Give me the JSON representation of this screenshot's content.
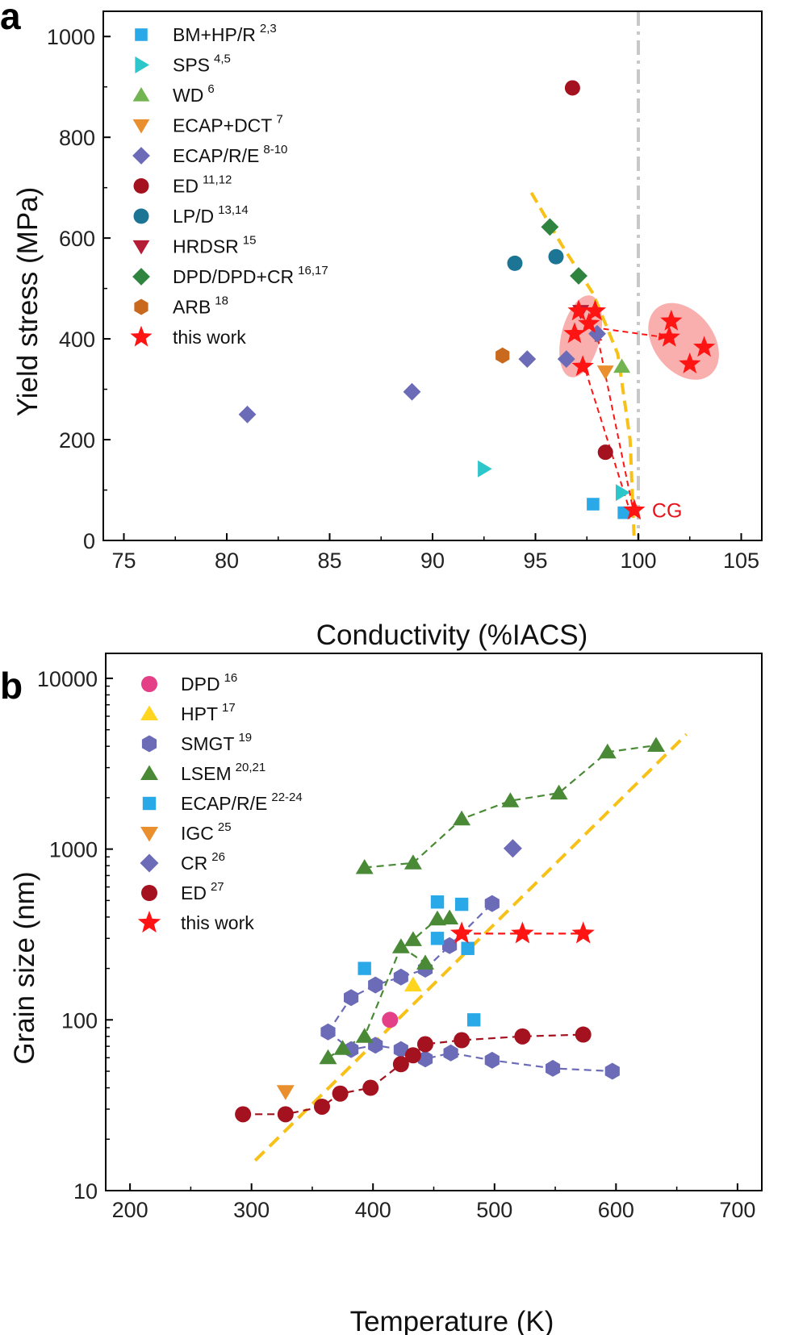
{
  "chart_data": [
    {
      "panel_label": "a",
      "type": "scatter",
      "xlabel": "Conductivity (%IACS)",
      "ylabel": "Yield stress (MPa)",
      "xlim": [
        74,
        106
      ],
      "ylim": [
        0,
        1050
      ],
      "xticks": [
        "75",
        "80",
        "85",
        "90",
        "95",
        "100",
        "105"
      ],
      "yticks": [
        "0",
        "200",
        "400",
        "600",
        "800",
        "1000"
      ],
      "grid": false,
      "legend_position": "top-left",
      "series": [
        {
          "name": "BM+HP/R",
          "ref": "2,3",
          "marker": "square",
          "color": "#29a9e8",
          "points": [
            [
              97.8,
              72
            ],
            [
              99.3,
              55
            ]
          ]
        },
        {
          "name": "SPS",
          "ref": "4,5",
          "marker": "triangle-right",
          "color": "#2cc6cb",
          "points": [
            [
              92.5,
              142
            ],
            [
              99.2,
              95
            ]
          ]
        },
        {
          "name": "WD",
          "ref": "6",
          "marker": "triangle-up",
          "color": "#72b44f",
          "points": [
            [
              99.2,
              345
            ]
          ]
        },
        {
          "name": "ECAP+DCT",
          "ref": "7",
          "marker": "triangle-down",
          "color": "#e98f2e",
          "points": [
            [
              98.4,
              335
            ]
          ]
        },
        {
          "name": "ECAP/R/E",
          "ref": "8-10",
          "marker": "diamond",
          "color": "#6c6bb8",
          "points": [
            [
              81.0,
              250
            ],
            [
              89.0,
              295
            ],
            [
              94.6,
              360
            ],
            [
              96.5,
              360
            ],
            [
              98.0,
              410
            ]
          ]
        },
        {
          "name": "ED",
          "ref": "11,12",
          "marker": "circle",
          "color": "#a3121e",
          "points": [
            [
              96.8,
              898
            ],
            [
              98.4,
              175
            ]
          ]
        },
        {
          "name": "LP/D",
          "ref": "13,14",
          "marker": "circle",
          "color": "#1c7594",
          "points": [
            [
              94.0,
              550
            ],
            [
              96.0,
              563
            ]
          ]
        },
        {
          "name": "HRDSR",
          "ref": "15",
          "marker": "triangle-down",
          "color": "#b51c35",
          "points": [
            [
              97.2,
              455
            ]
          ]
        },
        {
          "name": "DPD/DPD+CR",
          "ref": "16,17",
          "marker": "diamond",
          "color": "#2f8440",
          "points": [
            [
              95.7,
              622
            ],
            [
              97.1,
              525
            ]
          ]
        },
        {
          "name": "ARB",
          "ref": "18",
          "marker": "hexagon",
          "color": "#c9691d",
          "points": [
            [
              93.4,
              367
            ]
          ]
        },
        {
          "name": "this work",
          "ref": "",
          "marker": "star",
          "color": "#ff1414",
          "points": [
            [
              97.1,
              455
            ],
            [
              97.9,
              455
            ],
            [
              97.6,
              430
            ],
            [
              96.9,
              410
            ],
            [
              97.3,
              345
            ],
            [
              99.8,
              60
            ],
            [
              101.6,
              435
            ],
            [
              101.5,
              403
            ],
            [
              103.2,
              383
            ],
            [
              102.5,
              350
            ]
          ]
        }
      ],
      "annotations": {
        "cg_label": "CG",
        "dashed_curve": [
          [
            94.8,
            690
          ],
          [
            96.3,
            585
          ],
          [
            97.8,
            490
          ],
          [
            99.0,
            370
          ],
          [
            99.6,
            200
          ],
          [
            99.8,
            0
          ]
        ],
        "vertical_line_x": 100
      }
    },
    {
      "panel_label": "b",
      "type": "scatter",
      "xlabel": "Temperature (K)",
      "ylabel": "Grain size (nm)",
      "xlim": [
        180,
        720
      ],
      "ylim": [
        10,
        14000
      ],
      "y_scale": "log",
      "xticks": [
        "200",
        "300",
        "400",
        "500",
        "600",
        "700"
      ],
      "yticks": [
        "10",
        "100",
        "1000",
        "10000"
      ],
      "grid": false,
      "legend_position": "top-left",
      "series": [
        {
          "name": "DPD",
          "ref": "16",
          "marker": "circle",
          "color": "#e44088",
          "connected": false,
          "points": [
            [
              414,
              100
            ]
          ]
        },
        {
          "name": "HPT",
          "ref": "17",
          "marker": "triangle-up",
          "color": "#ffd51f",
          "connected": false,
          "points": [
            [
              433,
              160
            ]
          ]
        },
        {
          "name": "SMGT",
          "ref": "19",
          "marker": "hexagon",
          "color": "#6c6bb8",
          "connected": true,
          "lines": [
            [
              [
                363,
                85
              ],
              [
                382,
                135
              ],
              [
                402,
                160
              ],
              [
                423,
                178
              ],
              [
                443,
                198
              ],
              [
                463,
                272
              ],
              [
                498,
                480
              ]
            ],
            [
              [
                363,
                85
              ],
              [
                382,
                67
              ],
              [
                402,
                71
              ],
              [
                423,
                67
              ],
              [
                443,
                59
              ],
              [
                464,
                64
              ],
              [
                498,
                58
              ],
              [
                548,
                52
              ],
              [
                597,
                50
              ]
            ]
          ]
        },
        {
          "name": "LSEM",
          "ref": "20,21",
          "marker": "triangle-up",
          "color": "#4a8a36",
          "connected": true,
          "lines": [
            [
              [
                363,
                60
              ],
              [
                375,
                68
              ],
              [
                393,
                80
              ],
              [
                423,
                268
              ],
              [
                433,
                295
              ],
              [
                453,
                390
              ],
              [
                463,
                395
              ]
            ],
            [
              [
                393,
                780
              ],
              [
                433,
                830
              ],
              [
                473,
                1500
              ],
              [
                513,
                1920
              ],
              [
                553,
                2130
              ],
              [
                593,
                3700
              ],
              [
                633,
                4050
              ]
            ],
            [
              [
                423,
                268
              ],
              [
                443,
                215
              ]
            ]
          ]
        },
        {
          "name": "ECAP/R/E",
          "ref": "22-24",
          "marker": "square",
          "color": "#29a9e8",
          "connected": false,
          "points": [
            [
              393,
              200
            ],
            [
              453,
              490
            ],
            [
              453,
              300
            ],
            [
              473,
              475
            ],
            [
              478,
              262
            ],
            [
              483,
              100
            ]
          ]
        },
        {
          "name": "IGC",
          "ref": "25",
          "marker": "triangle-down",
          "color": "#e98f2e",
          "connected": false,
          "points": [
            [
              328,
              38
            ]
          ]
        },
        {
          "name": "CR",
          "ref": "26",
          "marker": "diamond",
          "color": "#6c6bb8",
          "connected": false,
          "points": [
            [
              515,
              1010
            ]
          ]
        },
        {
          "name": "ED",
          "ref": "27",
          "marker": "circle",
          "color": "#a3121e",
          "connected": true,
          "lines": [
            [
              [
                293,
                28
              ],
              [
                328,
                28
              ],
              [
                358,
                31
              ],
              [
                373,
                37
              ],
              [
                398,
                40
              ],
              [
                423,
                55
              ],
              [
                433,
                62
              ],
              [
                443,
                72
              ],
              [
                473,
                76
              ],
              [
                523,
                80
              ],
              [
                573,
                82
              ]
            ]
          ]
        },
        {
          "name": "this work",
          "ref": "",
          "marker": "star",
          "color": "#ff1414",
          "connected": true,
          "lines": [
            [
              [
                473,
                320
              ],
              [
                523,
                320
              ],
              [
                573,
                320
              ]
            ]
          ]
        }
      ],
      "annotations": {
        "dashed_curve": [
          [
            303,
            15
          ],
          [
            658,
            4700
          ]
        ]
      }
    }
  ]
}
